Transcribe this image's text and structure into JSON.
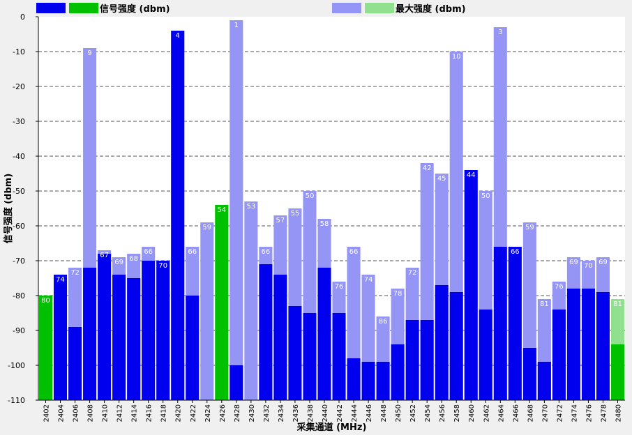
{
  "chart_data": {
    "type": "bar",
    "xlabel": "采集通道 (MHz)",
    "ylabel": "信号强度 (dbm)",
    "ylim": [
      -110,
      0
    ],
    "yticks": [
      0,
      -10,
      -20,
      -30,
      -40,
      -50,
      -60,
      -70,
      -80,
      -90,
      -100,
      -110
    ],
    "grid": true,
    "legend_position": "top",
    "legend": [
      {
        "label": "信号强度 (dbm)",
        "colors": [
          "#0000ee",
          "#00c000"
        ]
      },
      {
        "label": "最大强度 (dbm)",
        "colors": [
          "#9595f5",
          "#90e090"
        ]
      }
    ],
    "colors": {
      "signal": "#0000ee",
      "signal_highlight": "#00c000",
      "max": "#9595f5",
      "max_highlight": "#90e090",
      "grid": "#555555",
      "plot_background": "#ffffff"
    },
    "categories": [
      "2402",
      "2404",
      "2406",
      "2408",
      "2410",
      "2412",
      "2414",
      "2416",
      "2418",
      "2420",
      "2422",
      "2424",
      "2426",
      "2428",
      "2430",
      "2432",
      "2434",
      "2436",
      "2438",
      "2440",
      "2442",
      "2444",
      "2446",
      "2448",
      "2450",
      "2452",
      "2454",
      "2456",
      "2458",
      "2460",
      "2462",
      "2464",
      "2466",
      "2468",
      "2470",
      "2472",
      "2474",
      "2476",
      "2478",
      "2480"
    ],
    "highlighted": [
      "2402",
      "2426",
      "2480"
    ],
    "series": [
      {
        "name": "信号强度 (dbm)",
        "values": [
          -80,
          -74,
          -89,
          -72,
          -68,
          -74,
          -75,
          -70,
          -70,
          -4,
          -80,
          null,
          -54,
          -100,
          null,
          -71,
          -74,
          -83,
          -85,
          -72,
          -85,
          -98,
          -99,
          -99,
          -94,
          -87,
          -87,
          -77,
          -79,
          -44,
          -84,
          -66,
          -66,
          -95,
          -99,
          -84,
          -78,
          -78,
          -79,
          -94
        ]
      },
      {
        "name": "最大强度 (dbm)",
        "values": [
          -80,
          -74,
          -72,
          -9,
          -67,
          -69,
          -68,
          -66,
          -70,
          -4,
          -66,
          -59,
          -54,
          -1,
          -53,
          -66,
          -57,
          -55,
          -50,
          -58,
          -76,
          -66,
          -74,
          -86,
          -78,
          -72,
          -42,
          -45,
          -10,
          -44,
          -50,
          -3,
          -66,
          -59,
          -81,
          -76,
          -69,
          -70,
          -69,
          -81
        ]
      }
    ]
  }
}
